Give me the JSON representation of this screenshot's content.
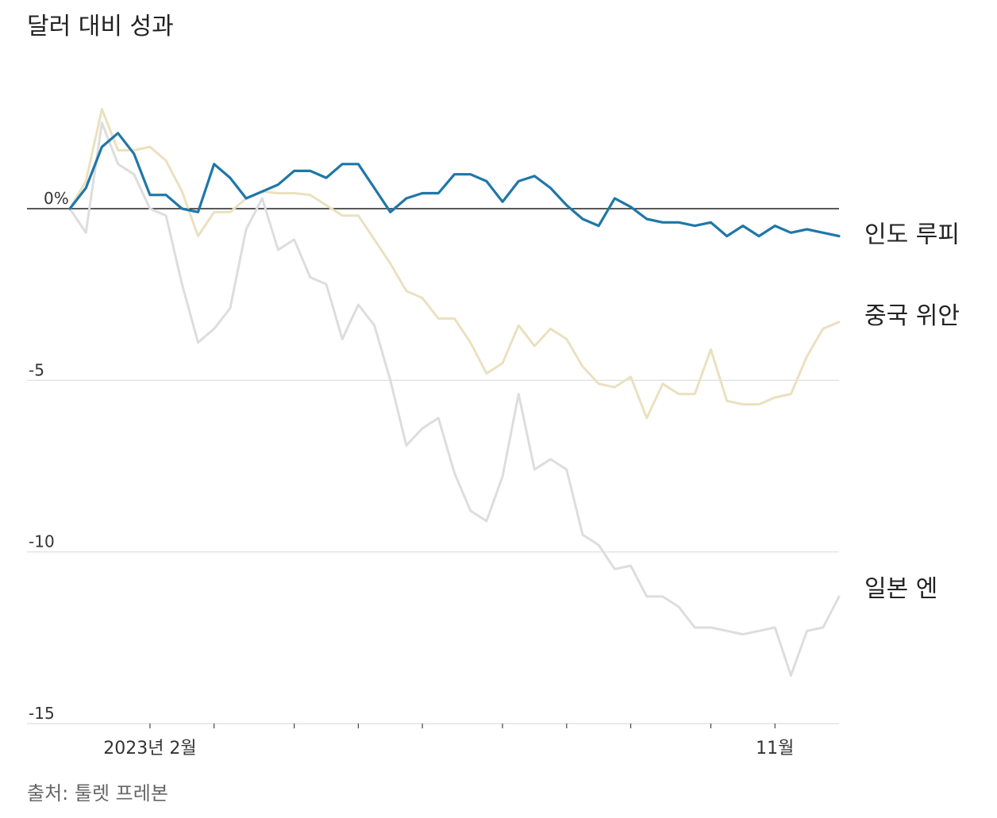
{
  "chart_data": {
    "type": "line",
    "title": "달러 대비 성과",
    "source": "출처: 툴렛 프레본",
    "ylim": [
      -15,
      0
    ],
    "y_ticks": [
      {
        "value": 0,
        "label": "0%"
      },
      {
        "value": -5,
        "label": "-5"
      },
      {
        "value": -10,
        "label": "-10"
      },
      {
        "value": -15,
        "label": "-15"
      }
    ],
    "x_labels": [
      {
        "index": 5,
        "label": "2023년 2월"
      },
      {
        "index": 44,
        "label": "11월"
      }
    ],
    "x_ticks": [
      5,
      9,
      14,
      18,
      22,
      27,
      31,
      35,
      40,
      44
    ],
    "legend": "right-end labels",
    "series": [
      {
        "name": "일본 엔",
        "color": "#dddddd",
        "values": [
          0,
          -0.7,
          2.5,
          1.3,
          1.0,
          0,
          -0.2,
          -2.2,
          -3.9,
          -3.5,
          -2.9,
          -0.6,
          0.3,
          -1.2,
          -0.9,
          -2.0,
          -2.2,
          -3.8,
          -2.8,
          -3.4,
          -5.0,
          -6.9,
          -6.4,
          -6.1,
          -7.7,
          -8.8,
          -9.1,
          -7.8,
          -5.4,
          -7.6,
          -7.3,
          -7.6,
          -9.5,
          -9.8,
          -10.5,
          -10.4,
          -11.3,
          -11.3,
          -11.6,
          -12.2,
          -12.2,
          -12.3,
          -12.4,
          -12.3,
          -12.2,
          -13.6,
          -12.3,
          -12.2,
          -11.3
        ]
      },
      {
        "name": "중국 위안",
        "color": "#ebe0bf",
        "values": [
          0,
          0.8,
          2.9,
          1.7,
          1.7,
          1.8,
          1.4,
          0.5,
          -0.8,
          -0.1,
          -0.1,
          0.3,
          0.5,
          0.45,
          0.45,
          0.4,
          0.1,
          -0.2,
          -0.2,
          -0.9,
          -1.6,
          -2.4,
          -2.6,
          -3.2,
          -3.2,
          -3.9,
          -4.8,
          -4.5,
          -3.4,
          -4.0,
          -3.5,
          -3.8,
          -4.6,
          -5.1,
          -5.2,
          -4.9,
          -6.1,
          -5.1,
          -5.4,
          -5.4,
          -4.1,
          -5.6,
          -5.7,
          -5.7,
          -5.5,
          -5.4,
          -4.3,
          -3.5,
          -3.3
        ]
      },
      {
        "name": "인도 루피",
        "color": "#1f77a8",
        "values": [
          0,
          0.6,
          1.8,
          2.2,
          1.6,
          0.4,
          0.4,
          0,
          -0.1,
          1.3,
          0.9,
          0.3,
          0.5,
          0.7,
          1.1,
          1.1,
          0.9,
          1.3,
          1.3,
          0.6,
          -0.1,
          0.3,
          0.45,
          0.45,
          1.0,
          1.0,
          0.8,
          0.2,
          0.8,
          0.95,
          0.6,
          0.1,
          -0.3,
          -0.5,
          0.3,
          0.05,
          -0.3,
          -0.4,
          -0.4,
          -0.5,
          -0.4,
          -0.8,
          -0.5,
          -0.8,
          -0.5,
          -0.7,
          -0.6,
          -0.7,
          -0.8
        ]
      }
    ]
  }
}
